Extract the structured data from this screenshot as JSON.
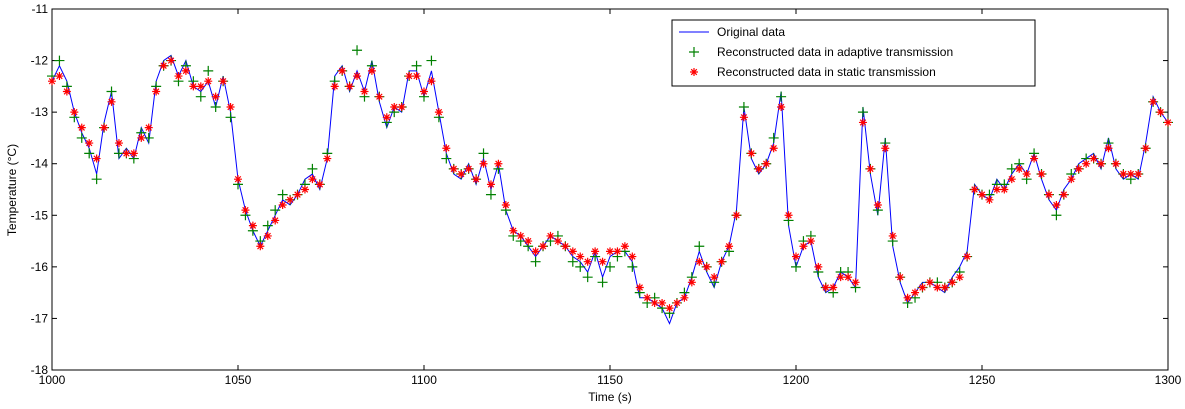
{
  "chart_data": {
    "type": "line",
    "xlabel": "Time (s)",
    "ylabel": "Temperature (°C)",
    "xlim": [
      1000,
      1300
    ],
    "ylim": [
      -18,
      -11
    ],
    "xticks": [
      1000,
      1050,
      1100,
      1150,
      1200,
      1250,
      1300
    ],
    "yticks": [
      -18,
      -17,
      -16,
      -15,
      -14,
      -13,
      -12,
      -11
    ],
    "legend": "upper right",
    "x": [
      1000,
      1002,
      1004,
      1006,
      1008,
      1010,
      1012,
      1014,
      1016,
      1018,
      1020,
      1022,
      1024,
      1026,
      1028,
      1030,
      1032,
      1034,
      1036,
      1038,
      1040,
      1042,
      1044,
      1046,
      1048,
      1050,
      1052,
      1054,
      1056,
      1058,
      1060,
      1062,
      1064,
      1066,
      1068,
      1070,
      1072,
      1074,
      1076,
      1078,
      1080,
      1082,
      1084,
      1086,
      1088,
      1090,
      1092,
      1094,
      1096,
      1098,
      1100,
      1102,
      1104,
      1106,
      1108,
      1110,
      1112,
      1114,
      1116,
      1118,
      1120,
      1122,
      1124,
      1126,
      1128,
      1130,
      1132,
      1134,
      1136,
      1138,
      1140,
      1142,
      1144,
      1146,
      1148,
      1150,
      1152,
      1154,
      1156,
      1158,
      1160,
      1162,
      1164,
      1166,
      1168,
      1170,
      1172,
      1174,
      1176,
      1178,
      1180,
      1182,
      1184,
      1186,
      1188,
      1190,
      1192,
      1194,
      1196,
      1198,
      1200,
      1202,
      1204,
      1206,
      1208,
      1210,
      1212,
      1214,
      1216,
      1218,
      1220,
      1222,
      1224,
      1226,
      1228,
      1230,
      1232,
      1234,
      1236,
      1238,
      1240,
      1242,
      1244,
      1246,
      1248,
      1250,
      1252,
      1254,
      1256,
      1258,
      1260,
      1262,
      1264,
      1266,
      1268,
      1270,
      1272,
      1274,
      1276,
      1278,
      1280,
      1282,
      1284,
      1286,
      1288,
      1290,
      1292,
      1294,
      1296,
      1298,
      1300
    ],
    "series": [
      {
        "name": "Original data",
        "color": "#0000ff",
        "style": "line",
        "values": [
          -12.4,
          -12.1,
          -12.4,
          -13.0,
          -13.4,
          -13.7,
          -14.2,
          -13.2,
          -12.6,
          -13.9,
          -13.7,
          -13.9,
          -13.3,
          -13.6,
          -12.4,
          -12.0,
          -11.9,
          -12.3,
          -12.0,
          -12.5,
          -12.6,
          -12.4,
          -12.9,
          -12.3,
          -13.0,
          -14.3,
          -14.9,
          -15.3,
          -15.6,
          -15.3,
          -15.0,
          -14.7,
          -14.8,
          -14.6,
          -14.3,
          -14.2,
          -14.5,
          -13.9,
          -12.3,
          -12.1,
          -12.6,
          -12.2,
          -12.6,
          -12.0,
          -12.8,
          -13.3,
          -12.9,
          -13.0,
          -12.2,
          -12.2,
          -12.7,
          -12.2,
          -13.0,
          -13.8,
          -14.2,
          -14.3,
          -14.0,
          -14.4,
          -13.9,
          -14.5,
          -14.0,
          -14.9,
          -15.3,
          -15.4,
          -15.6,
          -15.8,
          -15.6,
          -15.4,
          -15.5,
          -15.6,
          -15.8,
          -15.9,
          -16.1,
          -15.7,
          -16.2,
          -15.8,
          -15.7,
          -15.7,
          -15.9,
          -16.6,
          -16.6,
          -16.7,
          -16.8,
          -17.1,
          -16.7,
          -16.6,
          -16.2,
          -15.7,
          -16.1,
          -16.4,
          -15.9,
          -15.6,
          -14.9,
          -12.9,
          -13.9,
          -14.2,
          -14.0,
          -13.6,
          -12.6,
          -15.2,
          -16.0,
          -15.6,
          -15.5,
          -16.2,
          -16.5,
          -16.4,
          -16.1,
          -16.2,
          -16.4,
          -12.9,
          -14.2,
          -15.0,
          -13.5,
          -15.6,
          -16.3,
          -16.7,
          -16.5,
          -16.3,
          -16.3,
          -16.4,
          -16.5,
          -16.2,
          -16.0,
          -15.7,
          -14.4,
          -14.6,
          -14.7,
          -14.3,
          -14.5,
          -14.2,
          -14.0,
          -14.2,
          -13.8,
          -14.3,
          -14.7,
          -14.9,
          -14.5,
          -14.3,
          -14.0,
          -13.9,
          -13.8,
          -14.1,
          -13.5,
          -14.1,
          -14.3,
          -14.2,
          -14.3,
          -13.6,
          -12.7,
          -13.0,
          -13.2
        ]
      },
      {
        "name": "Reconstructed data in adaptive transmission",
        "color": "#008000",
        "style": "plus",
        "values": [
          -12.3,
          -12.0,
          -12.5,
          -13.1,
          -13.5,
          -13.8,
          -14.3,
          -13.3,
          -12.6,
          -13.8,
          -13.8,
          -13.9,
          -13.4,
          -13.5,
          -12.5,
          -12.1,
          -12.0,
          -12.4,
          -12.1,
          -12.4,
          -12.7,
          -12.2,
          -12.9,
          -12.4,
          -13.1,
          -14.4,
          -15.0,
          -15.3,
          -15.5,
          -15.2,
          -14.9,
          -14.6,
          -14.7,
          -14.6,
          -14.4,
          -14.1,
          -14.4,
          -13.8,
          -12.4,
          -12.2,
          -12.5,
          -11.8,
          -12.7,
          -12.1,
          -12.7,
          -13.2,
          -13.0,
          -12.9,
          -12.3,
          -12.1,
          -12.7,
          -12.0,
          -13.1,
          -13.9,
          -14.1,
          -14.2,
          -14.1,
          -14.3,
          -13.8,
          -14.6,
          -14.1,
          -14.9,
          -15.4,
          -15.5,
          -15.6,
          -15.9,
          -15.6,
          -15.5,
          -15.4,
          -15.6,
          -15.9,
          -16.0,
          -16.2,
          -15.8,
          -16.3,
          -16.0,
          -15.8,
          -15.7,
          -16.0,
          -16.5,
          -16.7,
          -16.6,
          -16.8,
          -16.9,
          -16.7,
          -16.5,
          -16.2,
          -15.6,
          -16.0,
          -16.3,
          -15.9,
          -15.7,
          -15.0,
          -12.9,
          -13.8,
          -14.1,
          -14.0,
          -13.5,
          -12.7,
          -15.1,
          -16.0,
          -15.5,
          -15.4,
          -16.1,
          -16.4,
          -16.5,
          -16.1,
          -16.1,
          -16.4,
          -13.0,
          -14.1,
          -14.9,
          -13.6,
          -15.5,
          -16.2,
          -16.7,
          -16.6,
          -16.4,
          -16.3,
          -16.3,
          -16.4,
          -16.3,
          -16.1,
          -15.8,
          -14.5,
          -14.6,
          -14.6,
          -14.4,
          -14.4,
          -14.1,
          -14.0,
          -14.3,
          -13.8,
          -14.2,
          -14.6,
          -15.0,
          -14.6,
          -14.2,
          -14.1,
          -13.9,
          -13.9,
          -14.0,
          -13.6,
          -14.0,
          -14.2,
          -14.3,
          -14.2,
          -13.7,
          -12.8,
          -13.0,
          -13.2
        ]
      },
      {
        "name": "Reconstructed data in static transmission",
        "color": "#ff0000",
        "style": "star",
        "values": [
          -12.4,
          -12.3,
          -12.6,
          -13.0,
          -13.3,
          -13.6,
          -13.9,
          -13.3,
          -12.8,
          -13.6,
          -13.8,
          -13.8,
          -13.5,
          -13.3,
          -12.6,
          -12.1,
          -12.0,
          -12.3,
          -12.2,
          -12.5,
          -12.5,
          -12.4,
          -12.7,
          -12.4,
          -12.9,
          -14.3,
          -14.9,
          -15.2,
          -15.6,
          -15.4,
          -15.1,
          -14.8,
          -14.7,
          -14.6,
          -14.5,
          -14.3,
          -14.4,
          -13.9,
          -12.5,
          -12.2,
          -12.5,
          -12.3,
          -12.6,
          -12.2,
          -12.7,
          -13.1,
          -12.9,
          -12.9,
          -12.3,
          -12.3,
          -12.6,
          -12.4,
          -13.0,
          -13.7,
          -14.1,
          -14.2,
          -14.1,
          -14.3,
          -14.0,
          -14.4,
          -14.0,
          -14.8,
          -15.3,
          -15.4,
          -15.5,
          -15.7,
          -15.6,
          -15.4,
          -15.5,
          -15.6,
          -15.7,
          -15.8,
          -15.9,
          -15.7,
          -15.9,
          -15.7,
          -15.7,
          -15.6,
          -15.8,
          -16.4,
          -16.6,
          -16.7,
          -16.7,
          -16.8,
          -16.7,
          -16.6,
          -16.3,
          -15.9,
          -16.0,
          -16.2,
          -15.9,
          -15.6,
          -15.0,
          -13.1,
          -13.8,
          -14.1,
          -14.0,
          -13.7,
          -12.9,
          -15.0,
          -15.8,
          -15.6,
          -15.5,
          -16.0,
          -16.4,
          -16.4,
          -16.2,
          -16.2,
          -16.3,
          -13.2,
          -14.1,
          -14.8,
          -13.7,
          -15.4,
          -16.2,
          -16.6,
          -16.5,
          -16.4,
          -16.3,
          -16.4,
          -16.4,
          -16.3,
          -16.2,
          -15.8,
          -14.5,
          -14.6,
          -14.7,
          -14.5,
          -14.5,
          -14.3,
          -14.1,
          -14.2,
          -13.9,
          -14.2,
          -14.6,
          -14.8,
          -14.6,
          -14.3,
          -14.1,
          -14.0,
          -13.9,
          -14.0,
          -13.7,
          -14.0,
          -14.2,
          -14.2,
          -14.2,
          -13.7,
          -12.8,
          -13.0,
          -13.2
        ]
      }
    ]
  }
}
